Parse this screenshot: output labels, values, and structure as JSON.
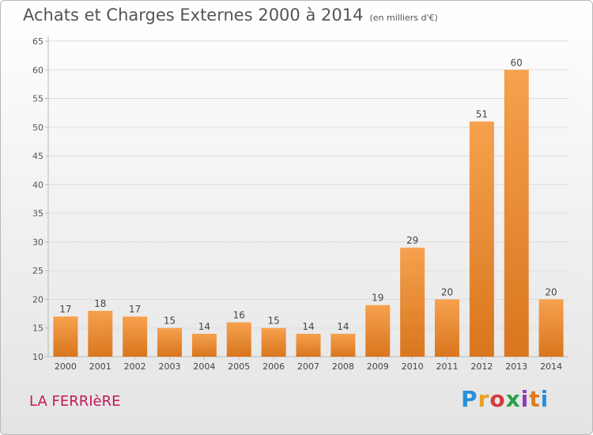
{
  "header": {
    "title": "Achats et Charges Externes 2000 à 2014",
    "unit": "(en milliers d'€)"
  },
  "footer": {
    "location": "LA FERRIèRE",
    "brand": "Proxiti"
  },
  "colors": {
    "bar_light": "#f6a14e",
    "bar_dark": "#d9761e",
    "axis": "#bbbbbb",
    "grid": "#dcdcdc",
    "location_text": "#c2185b"
  },
  "chart_data": {
    "type": "bar",
    "categories": [
      "2000",
      "2001",
      "2002",
      "2003",
      "2004",
      "2005",
      "2006",
      "2007",
      "2008",
      "2009",
      "2010",
      "2011",
      "2012",
      "2013",
      "2014"
    ],
    "values": [
      17,
      18,
      17,
      15,
      14,
      16,
      15,
      14,
      14,
      19,
      29,
      20,
      51,
      60,
      20
    ],
    "title": "Achats et Charges Externes 2000 à 2014",
    "subtitle": "(en milliers d'€)",
    "ylim": [
      10,
      65
    ],
    "yticks": [
      10,
      15,
      20,
      25,
      30,
      35,
      40,
      45,
      50,
      55,
      60,
      65
    ],
    "grid": true,
    "legend": "none"
  }
}
